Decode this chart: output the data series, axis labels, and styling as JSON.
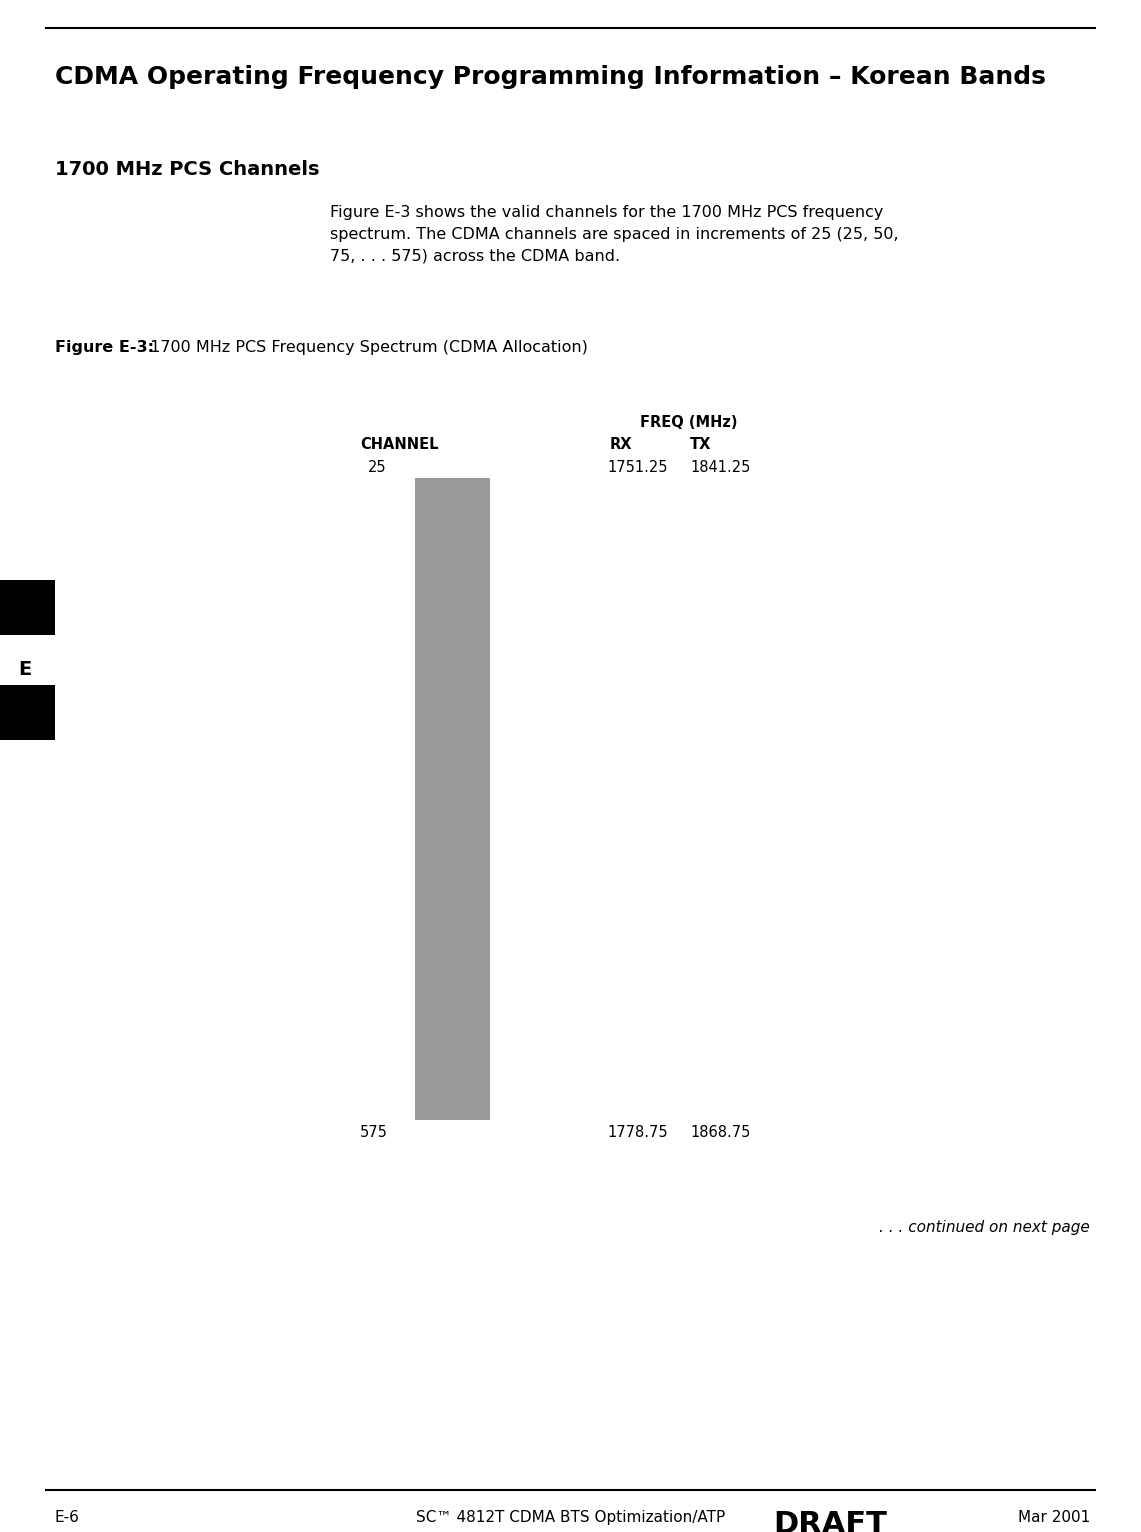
{
  "page_title": "CDMA Operating Frequency Programming Information – Korean Bands",
  "section_title": "1700 MHz PCS Channels",
  "body_text": "Figure E-3 shows the valid channels for the 1700 MHz PCS frequency\nspectrum. The CDMA channels are spaced in increments of 25 (25, 50,\n75, . . . 575) across the CDMA band.",
  "figure_caption_bold": "Figure E-3:",
  "figure_caption_normal": " 1700 MHz PCS Frequency Spectrum (CDMA Allocation)",
  "freq_label": "FREQ (MHz)",
  "rx_label": "RX",
  "tx_label": "TX",
  "channel_label": "CHANNEL",
  "top_channel": "25",
  "bottom_channel": "575",
  "top_rx": "1751.25",
  "top_tx": "1841.25",
  "bottom_rx": "1778.75",
  "bottom_tx": "1868.75",
  "bar_color": "#999999",
  "footer_left": "E-6",
  "footer_center": "SC™ 4812T CDMA BTS Optimization/ATP",
  "footer_draft": "DRAFT",
  "footer_right": "Mar 2001",
  "sidebar_letter": "E",
  "continued_text": ". . . continued on next page",
  "bg_color": "#ffffff",
  "text_color": "#000000"
}
